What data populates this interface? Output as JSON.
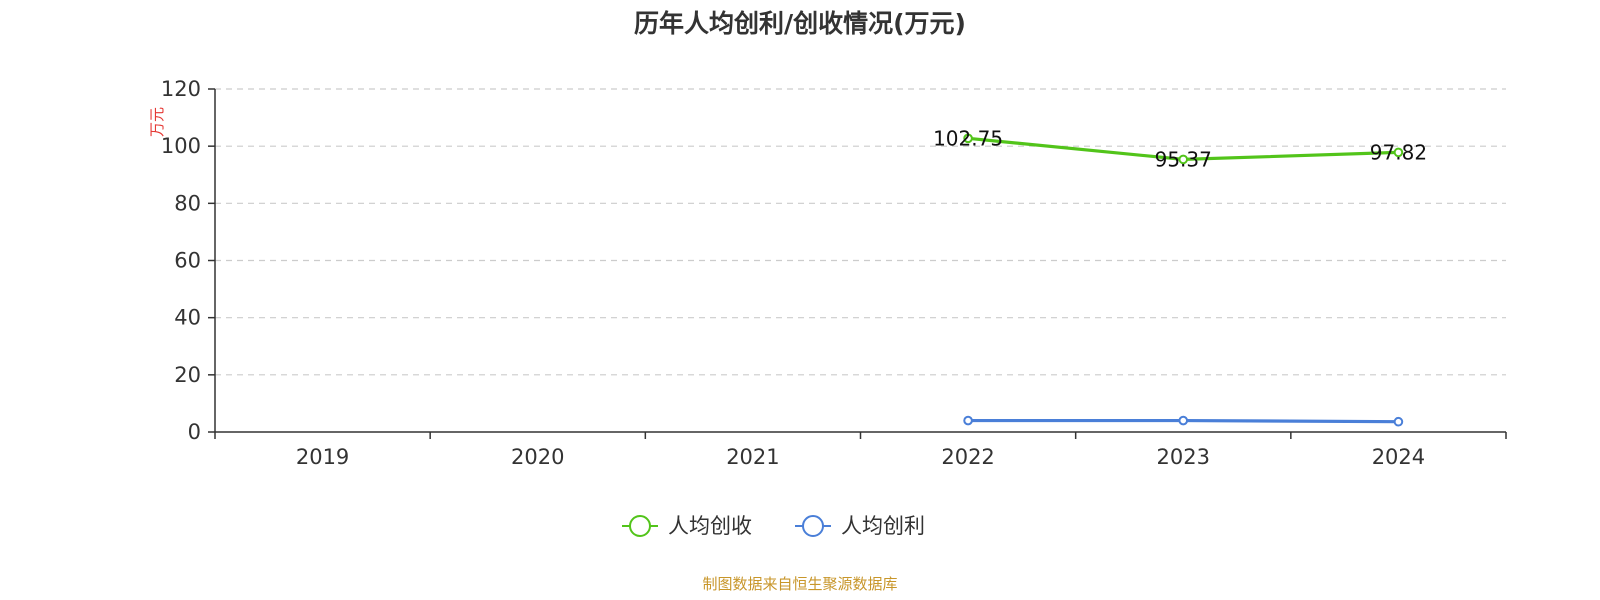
{
  "chart_data": {
    "type": "line",
    "title": "历年人均创利/创收情况(万元)",
    "ylabel": "万元",
    "xlabel": "",
    "categories": [
      "2019",
      "2020",
      "2021",
      "2022",
      "2023",
      "2024"
    ],
    "ylim": [
      0,
      120
    ],
    "yticks": [
      0,
      20,
      40,
      60,
      80,
      100,
      120
    ],
    "grid": true,
    "legend_position": "bottom-center",
    "series": [
      {
        "name": "人均创收",
        "color": "#52c41a",
        "values": [
          null,
          null,
          null,
          102.75,
          95.37,
          97.82
        ],
        "data_labels": [
          "",
          "",
          "",
          "102.75",
          "95.37",
          "97.82"
        ]
      },
      {
        "name": "人均创利",
        "color": "#4a7fd8",
        "values": [
          null,
          null,
          null,
          4.0,
          4.0,
          3.6
        ],
        "data_labels": [
          "",
          "",
          "",
          "",
          "",
          ""
        ]
      }
    ]
  },
  "source_text": "制图数据来自恒生聚源数据库",
  "colors": {
    "unit_label": "#e53935",
    "source_text": "#c8962a",
    "grid": "#cccccc",
    "axis": "#333333"
  }
}
